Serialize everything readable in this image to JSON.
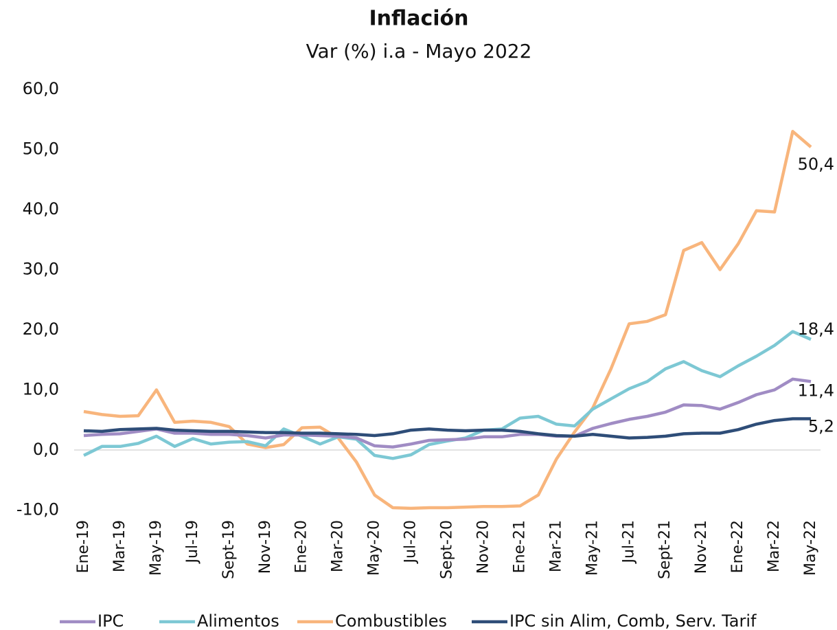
{
  "chart_data": {
    "type": "line",
    "title": "Inflación",
    "subtitle": "Var (%) i.a - Mayo 2022",
    "categories": [
      "Ene-19",
      null,
      "Mar-19",
      null,
      "May-19",
      null,
      "Jul-19",
      null,
      "Sept-19",
      null,
      "Nov-19",
      null,
      "Ene-20",
      null,
      "Mar-20",
      null,
      "May-20",
      null,
      "Jul-20",
      null,
      "Sept-20",
      null,
      "Nov-20",
      null,
      "Ene-21",
      null,
      "Mar-21",
      null,
      "May-21",
      null,
      "Jul-21",
      null,
      "Sept-21",
      null,
      "Nov-21",
      null,
      "Ene-22",
      null,
      "Mar-22",
      null,
      "May-22"
    ],
    "ylim": [
      -10,
      60
    ],
    "yticks": [
      {
        "value": -10,
        "label": "-10,0"
      },
      {
        "value": 0,
        "label": "0,0"
      },
      {
        "value": 10,
        "label": "10,0"
      },
      {
        "value": 20,
        "label": "20,0"
      },
      {
        "value": 30,
        "label": "30,0"
      },
      {
        "value": 40,
        "label": "40,0"
      },
      {
        "value": 50,
        "label": "50,0"
      },
      {
        "value": 60,
        "label": "60,0"
      }
    ],
    "grid": false,
    "legend": "bottom",
    "series": [
      {
        "name": "IPC",
        "color": "#a08cc4",
        "values": [
          2.4,
          2.6,
          2.7,
          3.1,
          3.5,
          2.8,
          2.8,
          2.6,
          2.6,
          2.4,
          2.0,
          2.5,
          2.5,
          2.4,
          2.3,
          2.0,
          0.7,
          0.5,
          1.0,
          1.6,
          1.7,
          1.8,
          2.2,
          2.2,
          2.6,
          2.6,
          2.3,
          2.3,
          3.6,
          4.4,
          5.1,
          5.6,
          6.3,
          7.5,
          7.4,
          6.8,
          7.9,
          9.2,
          10.0,
          11.8,
          11.4
        ],
        "value_labels": [
          null,
          null,
          null,
          null,
          null,
          null,
          null,
          null,
          null,
          null,
          null,
          null,
          null,
          null,
          null,
          null,
          null,
          null,
          null,
          null,
          null,
          null,
          null,
          null,
          null,
          null,
          null,
          null,
          null,
          null,
          null,
          null,
          null,
          null,
          null,
          null,
          null,
          null,
          null,
          null,
          "11,4"
        ]
      },
      {
        "name": "Alimentos",
        "color": "#7dc8d4",
        "values": [
          -0.9,
          0.6,
          0.6,
          1.1,
          2.3,
          0.6,
          1.9,
          1.0,
          1.3,
          1.4,
          0.7,
          3.5,
          2.3,
          1.0,
          2.2,
          1.8,
          -0.9,
          -1.4,
          -0.8,
          0.9,
          1.5,
          2.0,
          3.3,
          3.5,
          5.3,
          5.6,
          4.3,
          4.0,
          6.8,
          8.5,
          10.2,
          11.4,
          13.5,
          14.7,
          13.2,
          12.2,
          14.0,
          15.6,
          17.4,
          19.7,
          18.4
        ],
        "value_labels": [
          null,
          null,
          null,
          null,
          null,
          null,
          null,
          null,
          null,
          null,
          null,
          null,
          null,
          null,
          null,
          null,
          null,
          null,
          null,
          null,
          null,
          null,
          null,
          null,
          null,
          null,
          null,
          null,
          null,
          null,
          null,
          null,
          null,
          null,
          null,
          null,
          null,
          null,
          null,
          null,
          "18,4"
        ]
      },
      {
        "name": "Combustibles",
        "color": "#f8b57c",
        "values": [
          6.4,
          5.9,
          5.6,
          5.7,
          10.0,
          4.6,
          4.8,
          4.6,
          3.9,
          1.0,
          0.4,
          0.9,
          3.7,
          3.8,
          2.0,
          -2.0,
          -7.5,
          -9.6,
          -9.7,
          -9.6,
          -9.6,
          -9.5,
          -9.4,
          -9.4,
          -9.3,
          -7.5,
          -1.5,
          3.0,
          7.0,
          13.5,
          21.0,
          21.4,
          22.5,
          33.2,
          34.5,
          30.0,
          34.3,
          39.8,
          39.6,
          53.0,
          50.4
        ],
        "value_labels": [
          null,
          null,
          null,
          null,
          null,
          null,
          null,
          null,
          null,
          null,
          null,
          null,
          null,
          null,
          null,
          null,
          null,
          null,
          null,
          null,
          null,
          null,
          null,
          null,
          null,
          null,
          null,
          null,
          null,
          null,
          null,
          null,
          null,
          null,
          null,
          null,
          null,
          null,
          null,
          null,
          "50,4"
        ]
      },
      {
        "name": "IPC sin Alim, Comb, Serv. Tarif",
        "color": "#2e4d78",
        "values": [
          3.2,
          3.1,
          3.4,
          3.5,
          3.6,
          3.3,
          3.2,
          3.1,
          3.1,
          3.0,
          2.9,
          2.9,
          2.8,
          2.8,
          2.7,
          2.6,
          2.4,
          2.7,
          3.3,
          3.5,
          3.3,
          3.2,
          3.3,
          3.3,
          3.1,
          2.7,
          2.4,
          2.3,
          2.6,
          2.3,
          2.0,
          2.1,
          2.3,
          2.7,
          2.8,
          2.8,
          3.4,
          4.3,
          4.9,
          5.2,
          5.2
        ],
        "value_labels": [
          null,
          null,
          null,
          null,
          null,
          null,
          null,
          null,
          null,
          null,
          null,
          null,
          null,
          null,
          null,
          null,
          null,
          null,
          null,
          null,
          null,
          null,
          null,
          null,
          null,
          null,
          null,
          null,
          null,
          null,
          null,
          null,
          null,
          null,
          null,
          null,
          null,
          null,
          null,
          null,
          "5,2"
        ]
      }
    ]
  }
}
